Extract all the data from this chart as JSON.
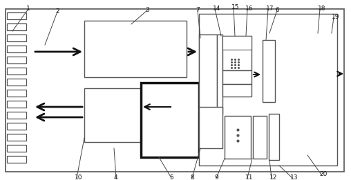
{
  "fig_width": 5.08,
  "fig_height": 2.61,
  "dpi": 100,
  "bg_color": "#ffffff",
  "lc": "#555555",
  "tlc": "#111111"
}
